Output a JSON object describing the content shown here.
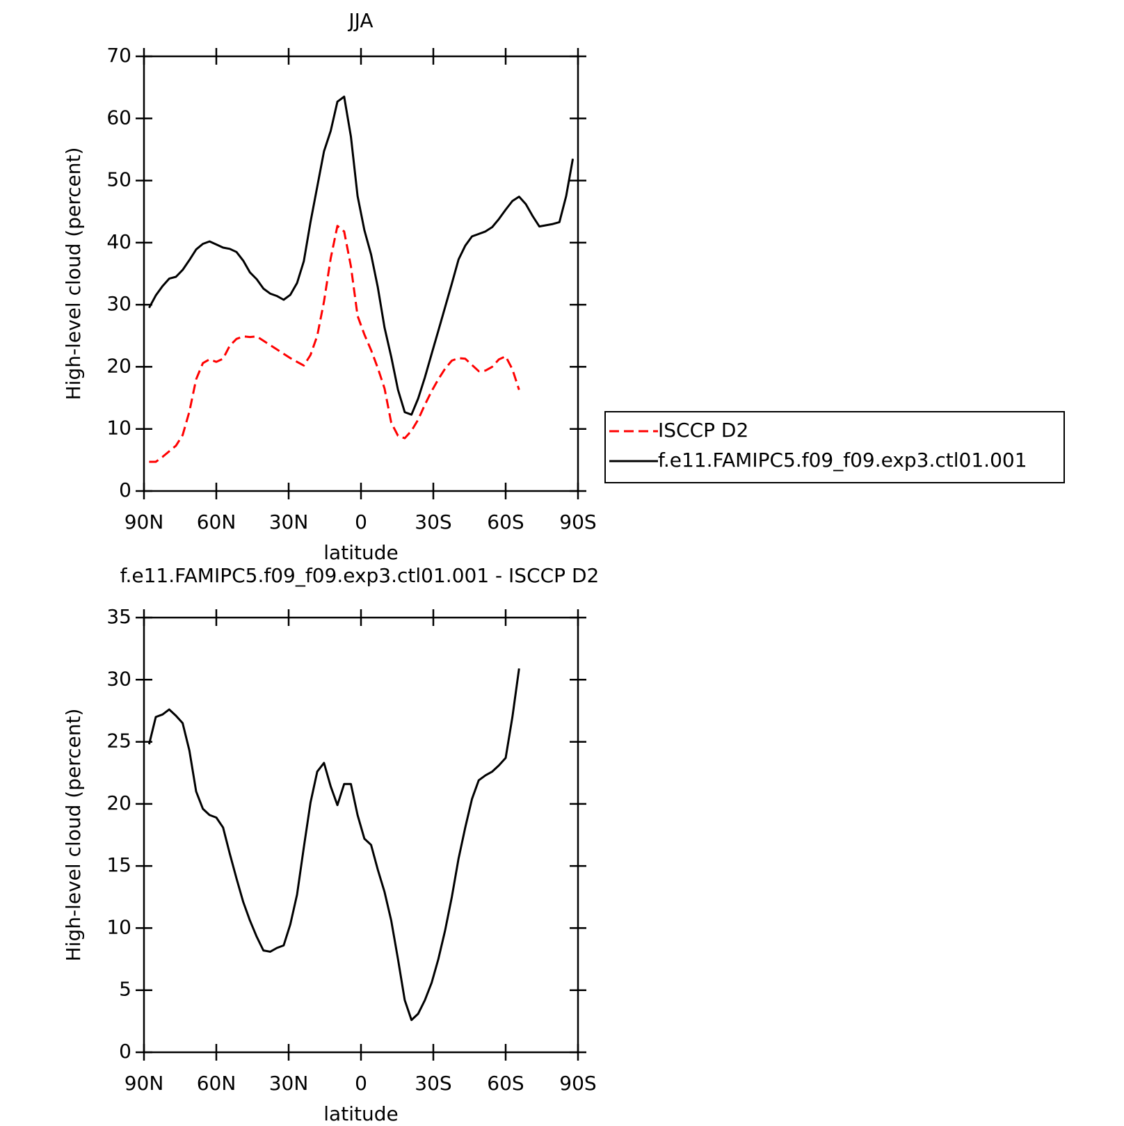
{
  "chart_data": [
    {
      "type": "line",
      "title": "JJA",
      "xlabel": "latitude",
      "ylabel": "High-level cloud (percent)",
      "x": [
        87.86,
        85.1,
        82.31,
        79.53,
        76.74,
        73.95,
        71.16,
        68.37,
        65.58,
        62.79,
        60.0,
        57.21,
        54.42,
        51.63,
        48.84,
        46.04,
        43.25,
        40.46,
        37.67,
        34.88,
        32.09,
        29.3,
        26.51,
        23.72,
        20.93,
        18.14,
        15.35,
        12.56,
        9.77,
        6.98,
        4.19,
        1.4,
        -1.4,
        -4.19,
        -6.98,
        -9.77,
        -12.56,
        -15.35,
        -18.14,
        -20.93,
        -23.72,
        -26.51,
        -29.3,
        -32.09,
        -34.88,
        -37.67,
        -40.46,
        -43.25,
        -46.04,
        -48.84,
        -51.63,
        -54.42,
        -57.21,
        -60.0,
        -62.79,
        -65.58,
        -68.37,
        -71.16,
        -73.95,
        -76.74,
        -79.53,
        -82.31,
        -85.1,
        -87.86
      ],
      "xlim": [
        90,
        -90
      ],
      "xticks": [
        {
          "value": 90,
          "label": "90N"
        },
        {
          "value": 60,
          "label": "60N"
        },
        {
          "value": 30,
          "label": "30N"
        },
        0,
        {
          "value": -30,
          "label": "30S"
        },
        {
          "value": -60,
          "label": "60S"
        },
        {
          "value": -90,
          "label": "90S"
        }
      ],
      "ylim": [
        0,
        70
      ],
      "yticks": [
        0,
        10,
        20,
        30,
        40,
        50,
        60,
        70
      ],
      "legend": "right",
      "series": [
        {
          "name": "ISCCP D2",
          "color": "#ff0000",
          "linestyle": "dashed",
          "values": [
            4.7,
            4.7,
            5.5,
            6.4,
            7.3,
            9.0,
            12.8,
            18.0,
            20.6,
            21.2,
            20.8,
            21.3,
            23.4,
            24.5,
            24.9,
            24.8,
            24.9,
            24.2,
            23.5,
            22.8,
            22.1,
            21.4,
            20.8,
            20.2,
            21.9,
            25.0,
            30.5,
            37.5,
            42.7,
            41.8,
            36.2,
            28.2,
            25.2,
            22.7,
            19.8,
            16.5,
            11.0,
            8.9,
            8.5,
            9.7,
            11.5,
            13.9,
            16.1,
            18.0,
            19.7,
            21.0,
            21.4,
            21.3,
            20.3,
            19.3,
            19.4,
            20.0,
            21.2,
            21.7,
            19.6,
            16.3,
            null,
            null,
            null,
            null,
            null,
            null,
            null,
            null
          ]
        },
        {
          "name": "f.e11.FAMIPC5.f09_f09.exp3.ctl01.001",
          "color": "#000000",
          "linestyle": "solid",
          "values": [
            29.5,
            31.5,
            33.0,
            34.2,
            34.5,
            35.6,
            37.2,
            38.9,
            39.8,
            40.2,
            39.7,
            39.2,
            39.0,
            38.5,
            37.1,
            35.2,
            34.1,
            32.6,
            31.8,
            31.4,
            30.8,
            31.6,
            33.5,
            37.0,
            43.3,
            49.0,
            54.7,
            58.0,
            62.7,
            63.5,
            57.1,
            47.5,
            42.0,
            38.1,
            32.8,
            26.3,
            21.6,
            16.3,
            12.7,
            12.3,
            14.9,
            18.3,
            22.1,
            25.8,
            29.6,
            33.4,
            37.3,
            39.5,
            41.0,
            41.4,
            41.8,
            42.5,
            43.8,
            45.3,
            46.7,
            47.4,
            46.2,
            44.3,
            42.6,
            42.8,
            43.0,
            43.3,
            47.5,
            53.5
          ]
        }
      ]
    },
    {
      "type": "line",
      "title": "f.e11.FAMIPC5.f09_f09.exp3.ctl01.001 - ISCCP D2",
      "xlabel": "latitude",
      "ylabel": "High-level cloud (percent)",
      "x": [
        87.86,
        85.1,
        82.31,
        79.53,
        76.74,
        73.95,
        71.16,
        68.37,
        65.58,
        62.79,
        60.0,
        57.21,
        54.42,
        51.63,
        48.84,
        46.04,
        43.25,
        40.46,
        37.67,
        34.88,
        32.09,
        29.3,
        26.51,
        23.72,
        20.93,
        18.14,
        15.35,
        12.56,
        9.77,
        6.98,
        4.19,
        1.4,
        -1.4,
        -4.19,
        -6.98,
        -9.77,
        -12.56,
        -15.35,
        -18.14,
        -20.93,
        -23.72,
        -26.51,
        -29.3,
        -32.09,
        -34.88,
        -37.67,
        -40.46,
        -43.25,
        -46.04,
        -48.84,
        -51.63,
        -54.42,
        -57.21,
        -60.0,
        -62.79,
        -65.58,
        -68.37,
        -71.16,
        -73.95,
        -76.74,
        -79.53,
        -82.31,
        -85.1,
        -87.86
      ],
      "xlim": [
        90,
        -90
      ],
      "xticks": [
        {
          "value": 90,
          "label": "90N"
        },
        {
          "value": 60,
          "label": "60N"
        },
        {
          "value": 30,
          "label": "30N"
        },
        0,
        {
          "value": -30,
          "label": "30S"
        },
        {
          "value": -60,
          "label": "60S"
        },
        {
          "value": -90,
          "label": "90S"
        }
      ],
      "ylim": [
        0,
        35
      ],
      "yticks": [
        0,
        5,
        10,
        15,
        20,
        25,
        30,
        35
      ],
      "series": [
        {
          "color": "#000000",
          "linestyle": "solid",
          "values": [
            24.8,
            27.0,
            27.2,
            27.6,
            27.1,
            26.5,
            24.3,
            21.0,
            19.6,
            19.1,
            18.9,
            18.1,
            16.0,
            14.0,
            12.1,
            10.6,
            9.3,
            8.2,
            8.1,
            8.4,
            8.6,
            10.3,
            12.7,
            16.5,
            20.1,
            22.6,
            23.3,
            21.4,
            19.9,
            21.6,
            21.6,
            19.1,
            17.2,
            16.7,
            14.7,
            12.9,
            10.6,
            7.5,
            4.2,
            2.6,
            3.1,
            4.2,
            5.6,
            7.5,
            9.8,
            12.5,
            15.6,
            18.1,
            20.4,
            21.9,
            22.3,
            22.6,
            23.1,
            23.7,
            27.0,
            30.9,
            null,
            null,
            null,
            null,
            null,
            null,
            null,
            null
          ]
        }
      ]
    }
  ]
}
